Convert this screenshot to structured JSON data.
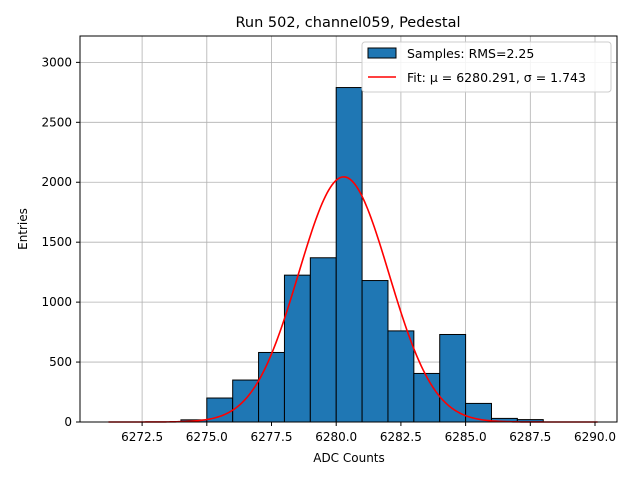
{
  "chart_data": {
    "type": "bar",
    "title": "Run 502, channel059, Pedestal",
    "xlabel": "ADC Counts",
    "ylabel": "Entries",
    "xlim": [
      6270.1,
      6290.85
    ],
    "ylim": [
      0,
      3220
    ],
    "grid": true,
    "legend_placement": "top-right",
    "x_ticks": [
      "6272.5",
      "6275.0",
      "6277.5",
      "6280.0",
      "6282.5",
      "6285.0",
      "6287.5",
      "6290.0"
    ],
    "x_tick_values": [
      6272.5,
      6275,
      6277.5,
      6280,
      6282.5,
      6285,
      6287.5,
      6290
    ],
    "y_ticks": [
      "0",
      "500",
      "1000",
      "1500",
      "2000",
      "2500",
      "3000"
    ],
    "y_tick_values": [
      0,
      500,
      1000,
      1500,
      2000,
      2500,
      3000
    ],
    "bin_edges": [
      6274,
      6275,
      6276,
      6277,
      6278,
      6279,
      6280,
      6281,
      6282,
      6283,
      6284,
      6285,
      6286,
      6287,
      6288
    ],
    "values": [
      18,
      200,
      350,
      580,
      1225,
      1370,
      2790,
      1180,
      760,
      405,
      730,
      155,
      30,
      20
    ],
    "series": [
      {
        "name": "Samples: RMS=2.25",
        "type": "histogram",
        "color": "#1f77b4"
      },
      {
        "name": "Fit: μ = 6280.291, σ = 1.743",
        "type": "line",
        "color": "#ff0000",
        "model": "gaussian",
        "amplitude": 2045,
        "mu": 6280.291,
        "sigma": 1.743,
        "x_range": [
          6271.2,
          6290.1
        ]
      }
    ]
  }
}
